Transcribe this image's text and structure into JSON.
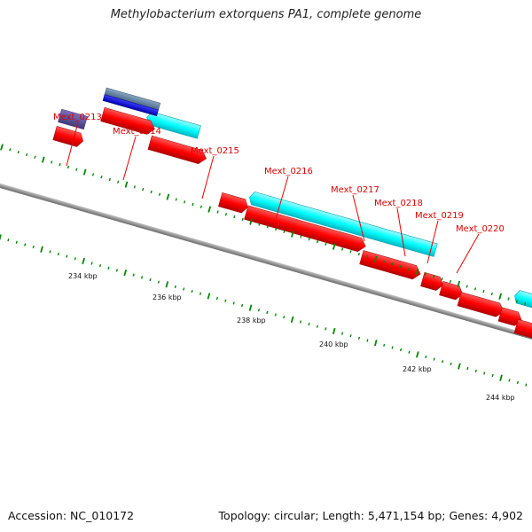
{
  "title": "Methylobacterium extorquens PA1, complete genome",
  "footer": {
    "accession_label": "Accession:",
    "accession": "NC_010172",
    "topology_label": "Topology:",
    "topology": "circular",
    "length_label": "Length:",
    "length": "5,471,154 bp",
    "genes_label": "Genes:",
    "genes": "4,902"
  },
  "scale": {
    "unit": "kbp",
    "labels": [
      "234 kbp",
      "236 kbp",
      "238 kbp",
      "240 kbp",
      "242 kbp",
      "244 kbp"
    ]
  },
  "gene_labels": [
    "Mext_0213",
    "Mext_0214",
    "Mext_0215",
    "Mext_0216",
    "Mext_0217",
    "Mext_0218",
    "Mext_0219",
    "Mext_0220"
  ],
  "colors": {
    "forward_cds": "#ff0000",
    "reverse_cds": "#00ffff",
    "rna_track_dark": "#5a4f9a",
    "rna_track_blue": "#0000ee",
    "backbone": "#888888",
    "tick": "#008800",
    "gene_label": "#dd0000",
    "callout_line": "#ee0000"
  }
}
